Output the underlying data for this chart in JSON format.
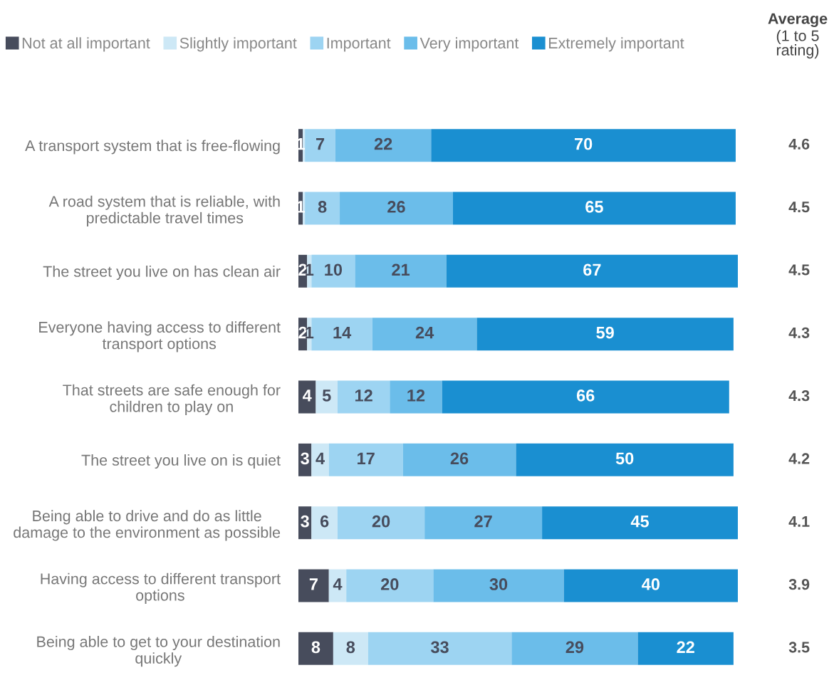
{
  "chart_data": {
    "type": "bar",
    "orientation": "horizontal",
    "stacked": true,
    "legend": "top",
    "categories": [
      "A transport system that is free-flowing",
      "A road system that is reliable, with\npredictable travel times",
      "The street you live on has clean air",
      "Everyone having access to different\ntransport options",
      "That streets are safe enough for\nchildren to play on",
      "The street you live on is quiet",
      "Being able to drive and do as little\ndamage to the environment as possible",
      "Having access to different transport\noptions",
      "Being able to get to your destination\nquickly"
    ],
    "series": [
      {
        "name": "Not at all important",
        "color": "#474c5c",
        "values": [
          1,
          1,
          2,
          2,
          4,
          3,
          3,
          7,
          8
        ],
        "value_labels": [
          "1",
          "1",
          "2",
          "2",
          "4",
          "3",
          "3",
          "7",
          "8"
        ]
      },
      {
        "name": "Slightly important",
        "color": "#cde8f6",
        "values": [
          0.5,
          0.5,
          1,
          1,
          5,
          4,
          6,
          4,
          8
        ],
        "value_labels": [
          null,
          null,
          "1",
          "1",
          "5",
          "4",
          "6",
          "4",
          "8"
        ]
      },
      {
        "name": "Important",
        "color": "#9dd4f2",
        "values": [
          7,
          8,
          10,
          14,
          12,
          17,
          20,
          20,
          33
        ],
        "value_labels": [
          "7",
          "8",
          "10",
          "14",
          "12",
          "17",
          "20",
          "20",
          "33"
        ]
      },
      {
        "name": "Very important",
        "color": "#6bbdea",
        "values": [
          22,
          26,
          21,
          24,
          12,
          26,
          27,
          30,
          29
        ],
        "value_labels": [
          "22",
          "26",
          "21",
          "24",
          "12",
          "26",
          "27",
          "30",
          "29"
        ]
      },
      {
        "name": "Extremely important",
        "color": "#1a8fd1",
        "values": [
          70,
          65,
          67,
          59,
          66,
          50,
          45,
          40,
          22
        ],
        "value_labels": [
          "70",
          "65",
          "67",
          "59",
          "66",
          "50",
          "45",
          "40",
          "22"
        ]
      }
    ],
    "annotations": [
      "Average\n(1 to 5\nrating)",
      "4.6",
      "4.5",
      "4.5",
      "4.3",
      "4.3",
      "4.2",
      "4.1",
      "3.9",
      "3.5"
    ]
  }
}
